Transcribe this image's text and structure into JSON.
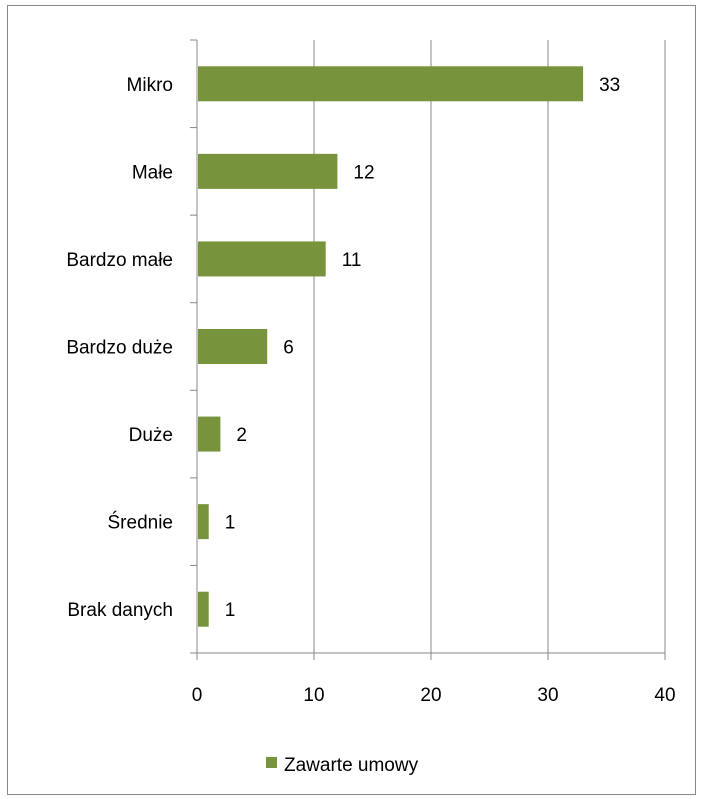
{
  "chart_data": {
    "type": "bar",
    "orientation": "horizontal",
    "title": "",
    "xlabel": "",
    "ylabel": "",
    "categories": [
      "Mikro",
      "Małe",
      "Bardzo małe",
      "Bardzo duże",
      "Duże",
      "Średnie",
      "Brak danych"
    ],
    "series": [
      {
        "name": "Zawarte umowy",
        "color": "#77933c",
        "values": [
          33,
          12,
          11,
          6,
          2,
          1,
          1
        ]
      }
    ],
    "xlim": [
      0,
      40
    ],
    "xticks": [
      "0",
      "10",
      "20",
      "30",
      "40"
    ],
    "grid": true,
    "data_labels": true,
    "legend": "bottom"
  },
  "legend": {
    "label": "Zawarte umowy"
  }
}
